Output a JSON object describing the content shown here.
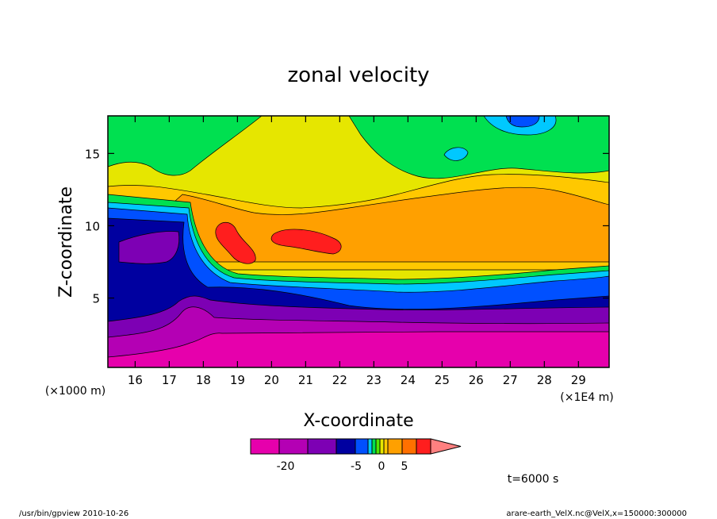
{
  "chart_data": {
    "type": "heatmap",
    "title": "zonal velocity",
    "xlabel": "X-coordinate",
    "ylabel": "Z-coordinate",
    "x_units_left": "(×1000 m)",
    "x_units_right": "(×1E4 m)",
    "x_ticks": [
      "16",
      "17",
      "18",
      "19",
      "20",
      "21",
      "22",
      "23",
      "24",
      "25",
      "26",
      "27",
      "28",
      "29"
    ],
    "y_ticks": [
      "5",
      "10",
      "15"
    ],
    "xlim": [
      15.2,
      29.9
    ],
    "ylim": [
      0.2,
      17.6
    ],
    "colorbar": {
      "labels": [
        "-20",
        "-5",
        "0",
        "5"
      ],
      "colors": [
        "#e600ac",
        "#b400b4",
        "#7d00b4",
        "#0000a0",
        "#0050ff",
        "#00c8ff",
        "#00e050",
        "#50e600",
        "#e6e600",
        "#ffc800",
        "#ffa000",
        "#ff7000",
        "#ff1e1e",
        "#ff8080"
      ],
      "extend_max": true
    },
    "fields": [
      {
        "name": "bottom magenta layer",
        "color": "#e600ac"
      },
      {
        "name": "purple layer",
        "color": "#b400b4"
      },
      {
        "name": "violet layer",
        "color": "#7d00b4"
      },
      {
        "name": "dark blue layer",
        "color": "#0000a0"
      },
      {
        "name": "blue layer",
        "color": "#0050ff"
      },
      {
        "name": "cyan band",
        "color": "#00c8ff"
      },
      {
        "name": "green band",
        "color": "#00e050"
      },
      {
        "name": "yellow layer",
        "color": "#e6e600"
      },
      {
        "name": "orange layer",
        "color": "#ffa000"
      },
      {
        "name": "red jet core",
        "color": "#ff1e1e"
      }
    ]
  },
  "annotations": {
    "time": "t=6000 s",
    "footer_left": "/usr/bin/gpview   2010-10-26",
    "footer_right": "arare-earth_VelX.nc@VelX,x=150000:300000"
  }
}
